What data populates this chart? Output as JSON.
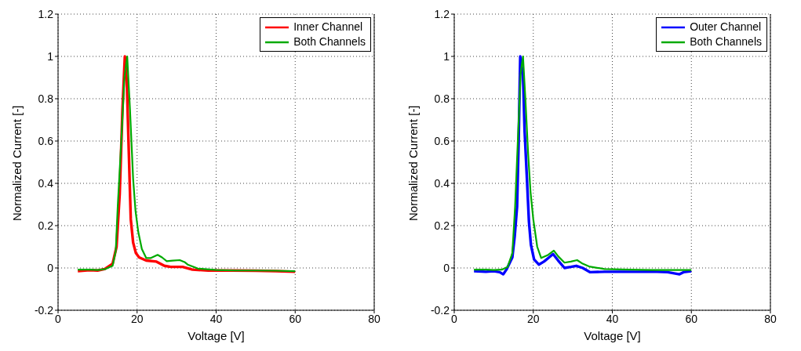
{
  "chart_data": [
    {
      "type": "line",
      "xlabel": "Voltage [V]",
      "ylabel": "Normalized Current [-]",
      "xlim": [
        0,
        80
      ],
      "xticks": [
        0,
        20,
        40,
        60,
        80
      ],
      "ylim": [
        -0.2,
        1.2
      ],
      "yticks": [
        -0.2,
        0,
        0.2,
        0.4,
        0.6,
        0.8,
        1,
        1.2
      ],
      "grid": true,
      "legend": "top right",
      "marker": "none",
      "line_style": "solid",
      "series": [
        {
          "name": "Inner Channel",
          "color": "#ff0000",
          "x": [
            5,
            8,
            10,
            11.8,
            13.8,
            14.8,
            15.6,
            16.3,
            16.9,
            17.4,
            17.9,
            18.4,
            19,
            19.7,
            20.5,
            22.3,
            24.9,
            26.9,
            28.5,
            31.5,
            34,
            38,
            44,
            50,
            55,
            60
          ],
          "values": [
            -0.015,
            -0.01,
            -0.012,
            -0.005,
            0.02,
            0.1,
            0.35,
            0.75,
            1,
            0.88,
            0.55,
            0.23,
            0.12,
            0.07,
            0.05,
            0.035,
            0.03,
            0.01,
            0.005,
            0.005,
            -0.008,
            -0.012,
            -0.012,
            -0.013,
            -0.015,
            -0.018
          ]
        },
        {
          "name": "Both Channels",
          "color": "#00aa00",
          "x": [
            5,
            8,
            10,
            12,
            13.8,
            14.6,
            15.1,
            16,
            16.8,
            17.5,
            18.2,
            19,
            19.6,
            20.3,
            21.2,
            22.3,
            23.5,
            25.2,
            26.3,
            27.5,
            29,
            30.8,
            32,
            32.8,
            35.4,
            40,
            45,
            50,
            55,
            60
          ],
          "values": [
            -0.008,
            -0.008,
            -0.01,
            -0.005,
            0.01,
            0.08,
            0.29,
            0.6,
            0.9,
            1,
            0.75,
            0.42,
            0.27,
            0.17,
            0.09,
            0.047,
            0.047,
            0.062,
            0.05,
            0.032,
            0.035,
            0.037,
            0.028,
            0.016,
            -0.003,
            -0.01,
            -0.012,
            -0.012,
            -0.013,
            -0.015
          ]
        }
      ]
    },
    {
      "type": "line",
      "xlabel": "Voltage [V]",
      "ylabel": "Normalized Current [-]",
      "xlim": [
        0,
        80
      ],
      "xticks": [
        0,
        20,
        40,
        60,
        80
      ],
      "ylim": [
        -0.2,
        1.2
      ],
      "yticks": [
        -0.2,
        0,
        0.2,
        0.4,
        0.6,
        0.8,
        1,
        1.2
      ],
      "grid": true,
      "legend": "top right",
      "marker": "none",
      "line_style": "solid",
      "series": [
        {
          "name": "Outer Channel",
          "color": "#0000ff",
          "x": [
            5,
            8,
            10,
            11.5,
            12.4,
            13.3,
            14.7,
            15.3,
            15.9,
            16.3,
            16.7,
            17.4,
            17.8,
            18.4,
            18.9,
            19.4,
            20.2,
            21.4,
            22.7,
            24,
            25,
            26.3,
            27.9,
            29.5,
            30.9,
            32.5,
            34.4,
            38,
            42,
            46,
            50,
            54,
            57,
            58,
            60
          ],
          "values": [
            -0.015,
            -0.018,
            -0.015,
            -0.02,
            -0.03,
            -0.005,
            0.05,
            0.15,
            0.29,
            0.6,
            1,
            0.91,
            0.65,
            0.42,
            0.22,
            0.11,
            0.04,
            0.016,
            0.03,
            0.05,
            0.066,
            0.035,
            0,
            0.005,
            0.01,
            0.0,
            -0.02,
            -0.018,
            -0.018,
            -0.018,
            -0.017,
            -0.02,
            -0.03,
            -0.02,
            -0.015
          ]
        },
        {
          "name": "Both Channels",
          "color": "#00aa00",
          "x": [
            5,
            8,
            10,
            12,
            13.5,
            14.7,
            15.4,
            16.2,
            16.8,
            17.4,
            18,
            18.7,
            19.3,
            20,
            21,
            22,
            23.6,
            25.2,
            26.3,
            27.9,
            29.5,
            31.1,
            32.5,
            34.1,
            38,
            44,
            50,
            55,
            60
          ],
          "values": [
            -0.008,
            -0.008,
            -0.01,
            -0.008,
            0.005,
            0.07,
            0.29,
            0.65,
            0.92,
            1,
            0.8,
            0.54,
            0.36,
            0.23,
            0.1,
            0.047,
            0.06,
            0.082,
            0.055,
            0.025,
            0.03,
            0.037,
            0.02,
            0.007,
            -0.005,
            -0.008,
            -0.01,
            -0.01,
            -0.01
          ]
        }
      ]
    }
  ]
}
